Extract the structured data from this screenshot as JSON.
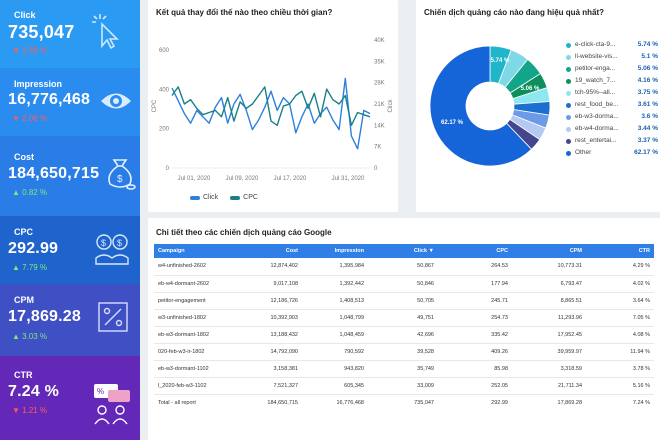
{
  "kpis": [
    {
      "label": "Click",
      "value": "735,047",
      "change": "2.69 %",
      "direction": "down",
      "icon": "cursor-click-icon"
    },
    {
      "label": "Impression",
      "value": "16,776,468",
      "change": "2.06 %",
      "direction": "down",
      "icon": "eye-icon"
    },
    {
      "label": "Cost",
      "value": "184,650,715",
      "change": "0.82 %",
      "direction": "up",
      "icon": "money-bag-icon"
    },
    {
      "label": "CPC",
      "value": "292.99",
      "change": "7.79 %",
      "direction": "up",
      "icon": "coins-icon"
    },
    {
      "label": "CPM",
      "value": "17,869.28",
      "change": "3.03 %",
      "direction": "up",
      "icon": "percent-box-icon"
    },
    {
      "label": "CTR",
      "value": "7.24 %",
      "change": "1.21 %",
      "direction": "down",
      "icon": "chat-people-icon"
    }
  ],
  "line_chart": {
    "title": "Kết quả thay đổi thế nào theo chiều thời gian?",
    "left_axis_label": "CPC",
    "right_axis_label": "Click",
    "left_ticks": [
      "600",
      "400",
      "200",
      "0"
    ],
    "right_ticks": [
      "40K",
      "35K",
      "28K",
      "21K",
      "14K",
      "7K",
      "0"
    ],
    "x_ticks": [
      "Jul 01, 2020",
      "Jul 09, 2020",
      "Jul 17, 2020",
      "Jul 31, 2020"
    ],
    "legend": {
      "click": "Click",
      "cpc": "CPC"
    },
    "colors": {
      "click": "#2e7fdc",
      "cpc": "#1a7f87"
    }
  },
  "chart_data": {
    "type": "line",
    "x": [
      "Jul 01, 2020",
      "Jul 02, 2020",
      "Jul 03, 2020",
      "Jul 04, 2020",
      "Jul 05, 2020",
      "Jul 06, 2020",
      "Jul 07, 2020",
      "Jul 08, 2020",
      "Jul 09, 2020",
      "Jul 10, 2020",
      "Jul 11, 2020",
      "Jul 12, 2020",
      "Jul 13, 2020",
      "Jul 14, 2020",
      "Jul 15, 2020",
      "Jul 16, 2020",
      "Jul 17, 2020",
      "Jul 18, 2020",
      "Jul 19, 2020",
      "Jul 20, 2020",
      "Jul 21, 2020",
      "Jul 22, 2020",
      "Jul 23, 2020",
      "Jul 24, 2020",
      "Jul 25, 2020",
      "Jul 26, 2020",
      "Jul 27, 2020",
      "Jul 28, 2020",
      "Jul 29, 2020",
      "Jul 30, 2020",
      "Jul 31, 2020",
      "Aug 01, 2020",
      "Aug 02, 2020"
    ],
    "series": [
      {
        "name": "Click",
        "axis": "right",
        "values": [
          25000,
          21000,
          17000,
          14000,
          18000,
          16000,
          14000,
          19000,
          22000,
          14000,
          20000,
          23000,
          18000,
          12000,
          15000,
          19000,
          24000,
          18000,
          22000,
          20000,
          11000,
          16000,
          20000,
          14000,
          17000,
          19000,
          15000,
          12000,
          28000,
          10000,
          6000,
          18000,
          17000
        ]
      },
      {
        "name": "CPC",
        "axis": "left",
        "values": [
          340,
          380,
          300,
          320,
          280,
          250,
          260,
          270,
          240,
          330,
          220,
          310,
          280,
          300,
          340,
          380,
          220,
          200,
          290,
          300,
          340,
          360,
          280,
          350,
          240,
          370,
          320,
          300,
          340,
          200,
          260,
          250,
          240
        ]
      }
    ],
    "ylim_left": [
      0,
      600
    ],
    "ylim_right": [
      0,
      40000
    ]
  },
  "donut": {
    "title": "Chiến dịch quảng cáo nào đang hiệu quả nhất?",
    "center_label": "62.17 %",
    "slice_labels": [
      "5.74 %",
      "5.06 %"
    ],
    "legend": [
      {
        "name": "e-click-cta-9...",
        "pct": "5.74 %",
        "value": 5.74,
        "color": "#1fb6c9"
      },
      {
        "name": "ll-website-vis...",
        "pct": "5.1 %",
        "value": 5.1,
        "color": "#7fd8e6"
      },
      {
        "name": "petitor-enga...",
        "pct": "5.06 %",
        "value": 5.06,
        "color": "#12a58a"
      },
      {
        "name": "19_watch_7...",
        "pct": "4.16 %",
        "value": 4.16,
        "color": "#0d8f5b"
      },
      {
        "name": "tch-95%--all...",
        "pct": "3.75 %",
        "value": 3.75,
        "color": "#8ee6f0"
      },
      {
        "name": "rest_food_be...",
        "pct": "3.61 %",
        "value": 3.61,
        "color": "#1a6fcf"
      },
      {
        "name": "eb-w3-dorma...",
        "pct": "3.6 %",
        "value": 3.6,
        "color": "#6b9be8"
      },
      {
        "name": "eb-w4-dorma...",
        "pct": "3.44 %",
        "value": 3.44,
        "color": "#b3c9f2"
      },
      {
        "name": "rest_entertai...",
        "pct": "3.37 %",
        "value": 3.37,
        "color": "#45458f"
      },
      {
        "name": "Other",
        "pct": "62.17 %",
        "value": 62.17,
        "color": "#1565d8"
      }
    ]
  },
  "table": {
    "title": "Chi tiết theo các chiến dịch quảng cáo Google",
    "headers": [
      "Campaign",
      "Cost",
      "Impression",
      "Click ▼",
      "CPC",
      "CPM",
      "CTR"
    ],
    "rows": [
      [
        "w4-unfinished-2602",
        "12,874,402",
        "1,395,984",
        "50,867",
        "264.53",
        "10,773.31",
        "4.29 %"
      ],
      [
        "eb-w4-dormant-2602",
        "9,017,108",
        "1,392,442",
        "50,846",
        "177.94",
        "6,793.47",
        "4.02 %"
      ],
      [
        "petitor-engagement",
        "12,186,726",
        "1,408,513",
        "50,705",
        "245.71",
        "8,865.51",
        "3.64 %"
      ],
      [
        "w3-unfinished-1802",
        "10,392,903",
        "1,048,799",
        "49,751",
        "254.73",
        "11,293.96",
        "7.05 %"
      ],
      [
        "eb-w3-dormant-1802",
        "13,188,432",
        "1,048,459",
        "42,696",
        "335.42",
        "17,952.45",
        "4.08 %"
      ],
      [
        "020-feb-w3-ir-1802",
        "14,792,090",
        "790,592",
        "39,528",
        "409.26",
        "39,959.97",
        "11.94 %"
      ],
      [
        "eb-w3-dormant-1102",
        "3,158,381",
        "943,820",
        "35,749",
        "85.98",
        "3,318.59",
        "3.78 %"
      ],
      [
        "l_2020-feb-w3-1102",
        "7,521,327",
        "605,345",
        "33,009",
        "252.05",
        "21,711.34",
        "5.16 %"
      ]
    ],
    "total": [
      "Total - all report",
      "184,650,715",
      "16,776,468",
      "735,047",
      "292.99",
      "17,869.28",
      "7.24 %"
    ]
  }
}
